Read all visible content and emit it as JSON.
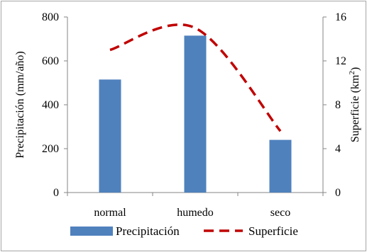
{
  "chart_data": {
    "type": "bar",
    "categories": [
      "normal",
      "humedo",
      "seco"
    ],
    "series": [
      {
        "name": "Precipitación",
        "type": "bar",
        "axis": "left",
        "color": "#4f81bd",
        "values": [
          515,
          715,
          240
        ]
      },
      {
        "name": "Superficie",
        "type": "line",
        "axis": "right",
        "color": "#c00000",
        "line_style": "dashed",
        "values": [
          13.0,
          15.0,
          5.6
        ]
      }
    ],
    "ylabel": "Precipitación (mm/año)",
    "y2label": "Superficie (km²)",
    "ylim": [
      0,
      800
    ],
    "y2lim": [
      0,
      16
    ],
    "yticks": [
      "0",
      "200",
      "400",
      "600",
      "800"
    ],
    "y2ticks": [
      "0",
      "4",
      "8",
      "12",
      "16"
    ],
    "grid": false,
    "legend_position": "bottom"
  }
}
